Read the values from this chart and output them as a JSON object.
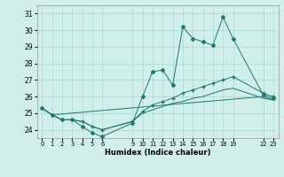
{
  "xlabel": "Humidex (Indice chaleur)",
  "bg_color": "#d0eeea",
  "grid_color": "#aad8d2",
  "line_color": "#1a7a6e",
  "xlim": [
    -0.5,
    23.5
  ],
  "ylim": [
    23.5,
    31.5
  ],
  "yticks": [
    24,
    25,
    26,
    27,
    28,
    29,
    30,
    31
  ],
  "xtick_positions": [
    0,
    1,
    2,
    3,
    4,
    5,
    6,
    9,
    10,
    11,
    12,
    13,
    14,
    15,
    16,
    17,
    18,
    19,
    22,
    23
  ],
  "xtick_labels": [
    "0",
    "1",
    "2",
    "3",
    "4",
    "5",
    "6",
    "9",
    "10",
    "11",
    "12",
    "13",
    "14",
    "15",
    "16",
    "17",
    "18",
    "19",
    "22",
    "23"
  ],
  "series1_x": [
    0,
    1,
    2,
    3,
    4,
    5,
    6,
    9,
    10,
    11,
    12,
    13,
    14,
    15,
    16,
    17,
    18,
    19,
    22,
    23
  ],
  "series1_y": [
    25.3,
    24.9,
    24.6,
    24.6,
    24.2,
    23.8,
    23.6,
    24.4,
    26.0,
    27.5,
    27.6,
    26.7,
    30.2,
    29.5,
    29.3,
    29.1,
    30.8,
    29.5,
    26.1,
    25.9
  ],
  "series2_x": [
    0,
    1,
    2,
    3,
    4,
    5,
    6,
    9,
    10,
    11,
    12,
    13,
    14,
    15,
    16,
    17,
    18,
    19,
    22,
    23
  ],
  "series2_y": [
    25.3,
    24.9,
    24.6,
    24.6,
    24.5,
    24.2,
    24.0,
    24.5,
    25.1,
    25.5,
    25.7,
    25.9,
    26.2,
    26.4,
    26.6,
    26.8,
    27.0,
    27.2,
    26.2,
    26.0
  ],
  "series3_x": [
    0,
    1,
    2,
    3,
    4,
    5,
    6,
    9,
    10,
    11,
    12,
    13,
    14,
    15,
    16,
    17,
    18,
    19,
    22,
    23
  ],
  "series3_y": [
    25.3,
    24.9,
    24.6,
    24.6,
    24.5,
    24.2,
    24.0,
    24.5,
    25.0,
    25.2,
    25.4,
    25.6,
    25.7,
    25.9,
    26.0,
    26.2,
    26.4,
    26.5,
    25.9,
    25.8
  ],
  "series4_x": [
    0,
    1,
    22,
    23
  ],
  "series4_y": [
    25.3,
    24.9,
    26.0,
    25.8
  ]
}
